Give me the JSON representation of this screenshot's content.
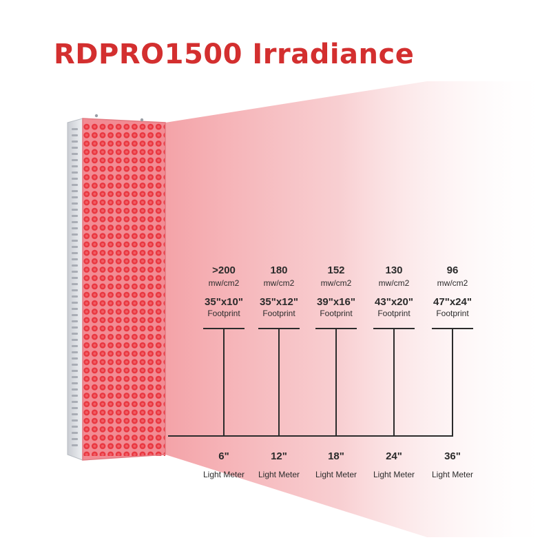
{
  "title": "RDPRO1500 Irradiance",
  "colors": {
    "title": "#d32f2f",
    "beam": "#f4a9ad",
    "led": "#e8323b",
    "panel": "#f28b93",
    "frame": "#d9dbe0",
    "line": "#2b2b2b"
  },
  "measurements": [
    {
      "irradiance": ">200",
      "unit": "mw/cm2",
      "footprint": "35\"x10\"",
      "footprint_label": "Footprint",
      "distance": "6\"",
      "meter_label": "Light Meter"
    },
    {
      "irradiance": "180",
      "unit": "mw/cm2",
      "footprint": "35\"x12\"",
      "footprint_label": "Footprint",
      "distance": "12\"",
      "meter_label": "Light Meter"
    },
    {
      "irradiance": "152",
      "unit": "mw/cm2",
      "footprint": "39\"x16\"",
      "footprint_label": "Footprint",
      "distance": "18\"",
      "meter_label": "Light Meter"
    },
    {
      "irradiance": "130",
      "unit": "mw/cm2",
      "footprint": "43\"x20\"",
      "footprint_label": "Footprint",
      "distance": "24\"",
      "meter_label": "Light Meter"
    },
    {
      "irradiance": "96",
      "unit": "mw/cm2",
      "footprint": "47\"x24\"",
      "footprint_label": "Footprint",
      "distance": "36\"",
      "meter_label": "Light Meter"
    }
  ]
}
